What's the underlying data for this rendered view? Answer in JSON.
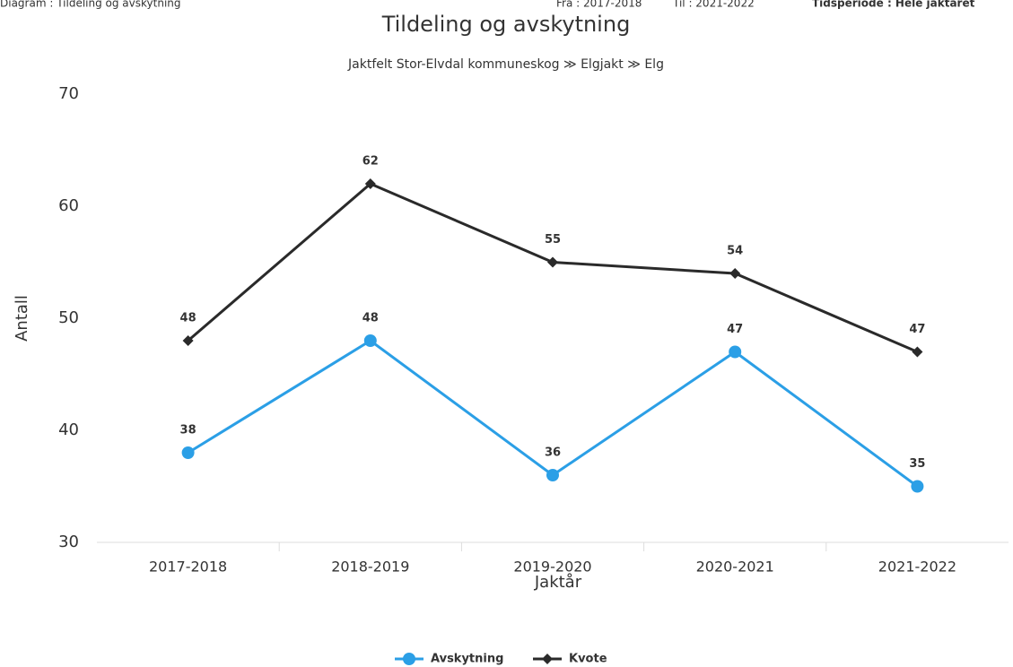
{
  "chart_data": {
    "type": "line",
    "header": [
      "Diagram : Tildeling og avskytning",
      "Fra : 2017-2018",
      "Til : 2021-2022",
      "Tidsperiode : Hele jaktåret"
    ],
    "title": "Tildeling og avskytning",
    "subtitle": "Jaktfelt Stor-Elvdal kommuneskog ≫ Elgjakt ≫ Elg",
    "x_label": "Jaktår",
    "y_label": "Antall",
    "categories": [
      "2017-2018",
      "2018-2019",
      "2019-2020",
      "2020-2021",
      "2021-2022"
    ],
    "series": [
      {
        "name": "Avskytning",
        "color": "#2b9fe6",
        "marker": "circle",
        "values": [
          38,
          48,
          36,
          47,
          35
        ]
      },
      {
        "name": "Kvote",
        "color": "#2a2a2a",
        "marker": "diamond",
        "values": [
          48,
          62,
          55,
          54,
          47
        ]
      }
    ],
    "ylim": [
      30,
      70
    ],
    "yticks": [
      30,
      40,
      50,
      60,
      70
    ],
    "grid": false,
    "legend": "bottom"
  }
}
